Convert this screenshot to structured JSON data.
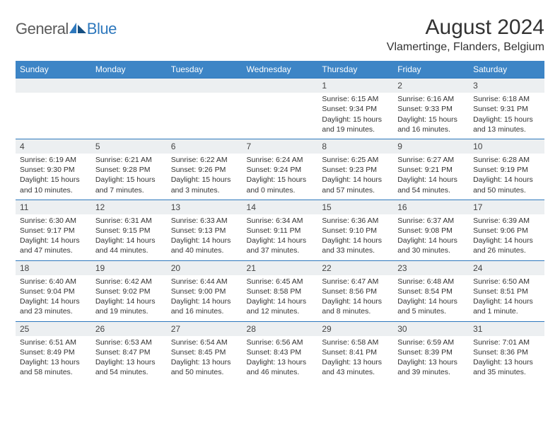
{
  "brand": {
    "word_general": "General",
    "word_blue": "Blue",
    "general_color": "#5b5b5b",
    "blue_color": "#2e78bd"
  },
  "header": {
    "month_title": "August 2024",
    "location": "Vlamertinge, Flanders, Belgium"
  },
  "colors": {
    "header_row_bg": "#3d85c6",
    "header_row_text": "#ffffff",
    "daynum_bg": "#eceff1",
    "row_border": "#2e78bd",
    "body_text": "#333333",
    "secondary_text": "#5e5e5e"
  },
  "typography": {
    "month_title_fontsize": 30,
    "location_fontsize": 16,
    "dayheader_fontsize": 12,
    "daynum_fontsize": 12,
    "cell_fontsize": 10.5
  },
  "day_headers": [
    "Sunday",
    "Monday",
    "Tuesday",
    "Wednesday",
    "Thursday",
    "Friday",
    "Saturday"
  ],
  "weeks": [
    [
      {
        "n": "",
        "sr": "",
        "ss": "",
        "dl": ""
      },
      {
        "n": "",
        "sr": "",
        "ss": "",
        "dl": ""
      },
      {
        "n": "",
        "sr": "",
        "ss": "",
        "dl": ""
      },
      {
        "n": "",
        "sr": "",
        "ss": "",
        "dl": ""
      },
      {
        "n": "1",
        "sr": "Sunrise: 6:15 AM",
        "ss": "Sunset: 9:34 PM",
        "dl": "Daylight: 15 hours and 19 minutes."
      },
      {
        "n": "2",
        "sr": "Sunrise: 6:16 AM",
        "ss": "Sunset: 9:33 PM",
        "dl": "Daylight: 15 hours and 16 minutes."
      },
      {
        "n": "3",
        "sr": "Sunrise: 6:18 AM",
        "ss": "Sunset: 9:31 PM",
        "dl": "Daylight: 15 hours and 13 minutes."
      }
    ],
    [
      {
        "n": "4",
        "sr": "Sunrise: 6:19 AM",
        "ss": "Sunset: 9:30 PM",
        "dl": "Daylight: 15 hours and 10 minutes."
      },
      {
        "n": "5",
        "sr": "Sunrise: 6:21 AM",
        "ss": "Sunset: 9:28 PM",
        "dl": "Daylight: 15 hours and 7 minutes."
      },
      {
        "n": "6",
        "sr": "Sunrise: 6:22 AM",
        "ss": "Sunset: 9:26 PM",
        "dl": "Daylight: 15 hours and 3 minutes."
      },
      {
        "n": "7",
        "sr": "Sunrise: 6:24 AM",
        "ss": "Sunset: 9:24 PM",
        "dl": "Daylight: 15 hours and 0 minutes."
      },
      {
        "n": "8",
        "sr": "Sunrise: 6:25 AM",
        "ss": "Sunset: 9:23 PM",
        "dl": "Daylight: 14 hours and 57 minutes."
      },
      {
        "n": "9",
        "sr": "Sunrise: 6:27 AM",
        "ss": "Sunset: 9:21 PM",
        "dl": "Daylight: 14 hours and 54 minutes."
      },
      {
        "n": "10",
        "sr": "Sunrise: 6:28 AM",
        "ss": "Sunset: 9:19 PM",
        "dl": "Daylight: 14 hours and 50 minutes."
      }
    ],
    [
      {
        "n": "11",
        "sr": "Sunrise: 6:30 AM",
        "ss": "Sunset: 9:17 PM",
        "dl": "Daylight: 14 hours and 47 minutes."
      },
      {
        "n": "12",
        "sr": "Sunrise: 6:31 AM",
        "ss": "Sunset: 9:15 PM",
        "dl": "Daylight: 14 hours and 44 minutes."
      },
      {
        "n": "13",
        "sr": "Sunrise: 6:33 AM",
        "ss": "Sunset: 9:13 PM",
        "dl": "Daylight: 14 hours and 40 minutes."
      },
      {
        "n": "14",
        "sr": "Sunrise: 6:34 AM",
        "ss": "Sunset: 9:11 PM",
        "dl": "Daylight: 14 hours and 37 minutes."
      },
      {
        "n": "15",
        "sr": "Sunrise: 6:36 AM",
        "ss": "Sunset: 9:10 PM",
        "dl": "Daylight: 14 hours and 33 minutes."
      },
      {
        "n": "16",
        "sr": "Sunrise: 6:37 AM",
        "ss": "Sunset: 9:08 PM",
        "dl": "Daylight: 14 hours and 30 minutes."
      },
      {
        "n": "17",
        "sr": "Sunrise: 6:39 AM",
        "ss": "Sunset: 9:06 PM",
        "dl": "Daylight: 14 hours and 26 minutes."
      }
    ],
    [
      {
        "n": "18",
        "sr": "Sunrise: 6:40 AM",
        "ss": "Sunset: 9:04 PM",
        "dl": "Daylight: 14 hours and 23 minutes."
      },
      {
        "n": "19",
        "sr": "Sunrise: 6:42 AM",
        "ss": "Sunset: 9:02 PM",
        "dl": "Daylight: 14 hours and 19 minutes."
      },
      {
        "n": "20",
        "sr": "Sunrise: 6:44 AM",
        "ss": "Sunset: 9:00 PM",
        "dl": "Daylight: 14 hours and 16 minutes."
      },
      {
        "n": "21",
        "sr": "Sunrise: 6:45 AM",
        "ss": "Sunset: 8:58 PM",
        "dl": "Daylight: 14 hours and 12 minutes."
      },
      {
        "n": "22",
        "sr": "Sunrise: 6:47 AM",
        "ss": "Sunset: 8:56 PM",
        "dl": "Daylight: 14 hours and 8 minutes."
      },
      {
        "n": "23",
        "sr": "Sunrise: 6:48 AM",
        "ss": "Sunset: 8:54 PM",
        "dl": "Daylight: 14 hours and 5 minutes."
      },
      {
        "n": "24",
        "sr": "Sunrise: 6:50 AM",
        "ss": "Sunset: 8:51 PM",
        "dl": "Daylight: 14 hours and 1 minute."
      }
    ],
    [
      {
        "n": "25",
        "sr": "Sunrise: 6:51 AM",
        "ss": "Sunset: 8:49 PM",
        "dl": "Daylight: 13 hours and 58 minutes."
      },
      {
        "n": "26",
        "sr": "Sunrise: 6:53 AM",
        "ss": "Sunset: 8:47 PM",
        "dl": "Daylight: 13 hours and 54 minutes."
      },
      {
        "n": "27",
        "sr": "Sunrise: 6:54 AM",
        "ss": "Sunset: 8:45 PM",
        "dl": "Daylight: 13 hours and 50 minutes."
      },
      {
        "n": "28",
        "sr": "Sunrise: 6:56 AM",
        "ss": "Sunset: 8:43 PM",
        "dl": "Daylight: 13 hours and 46 minutes."
      },
      {
        "n": "29",
        "sr": "Sunrise: 6:58 AM",
        "ss": "Sunset: 8:41 PM",
        "dl": "Daylight: 13 hours and 43 minutes."
      },
      {
        "n": "30",
        "sr": "Sunrise: 6:59 AM",
        "ss": "Sunset: 8:39 PM",
        "dl": "Daylight: 13 hours and 39 minutes."
      },
      {
        "n": "31",
        "sr": "Sunrise: 7:01 AM",
        "ss": "Sunset: 8:36 PM",
        "dl": "Daylight: 13 hours and 35 minutes."
      }
    ]
  ]
}
